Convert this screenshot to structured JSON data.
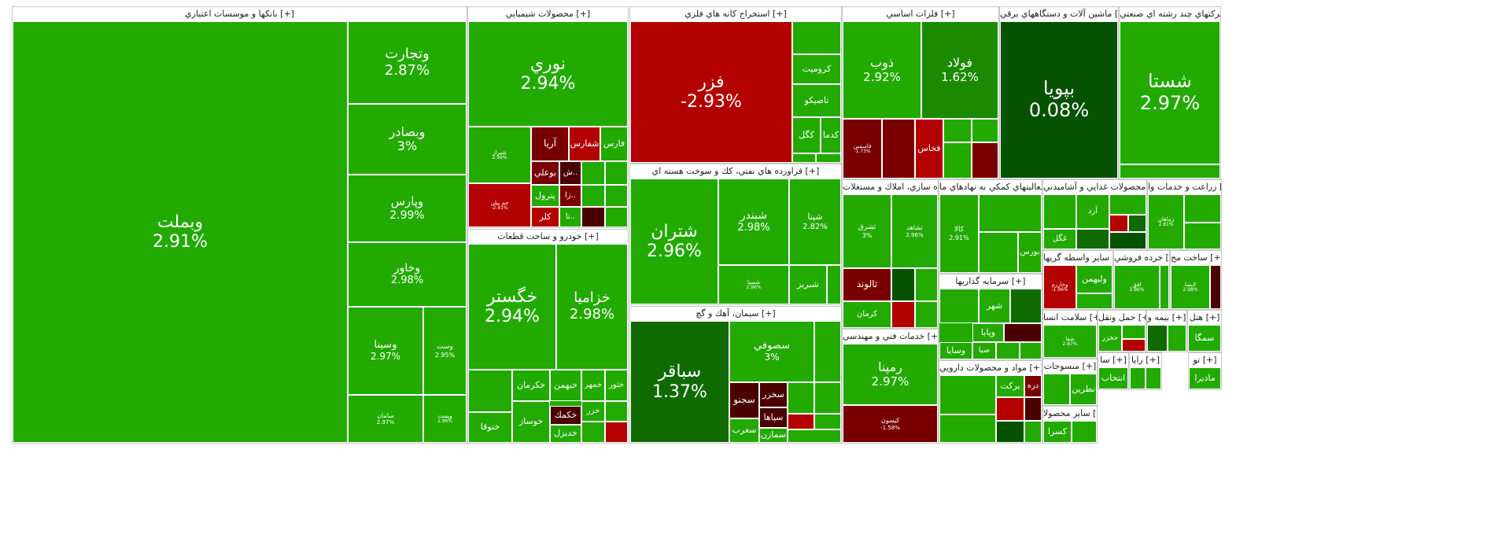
{
  "colors": {
    "green": "#22aa00",
    "mid_green": "#1c8a00",
    "dark_green": "#0f6a00",
    "deepest_green": "#055200",
    "red": "#b30000",
    "dark_red": "#7a0000",
    "deepest_red": "#4a0000",
    "border": "#ffffff",
    "header_bg": "#ffffff"
  },
  "chart_data": {
    "type": "treemap",
    "metric": "daily change (%)",
    "sectors": [
      {
        "title": "بانكها و موسسات اعتباري [+]",
        "symbols": [
          {
            "name": "وبملت",
            "change": "2.91%"
          },
          {
            "name": "وتجارت",
            "change": "2.87%"
          },
          {
            "name": "وبصادر",
            "change": "3%"
          },
          {
            "name": "وپارس",
            "change": "2.99%"
          },
          {
            "name": "وخاور",
            "change": "2.98%"
          },
          {
            "name": "وسينا",
            "change": "2.97%"
          },
          {
            "name": "وست",
            "change": "2.95%"
          },
          {
            "name": "سامان",
            "change": "2.97%"
          },
          {
            "name": "وپست",
            "change": "2.96%"
          }
        ]
      },
      {
        "title": "محصولات شيميايي [+]",
        "symbols": [
          {
            "name": "نوري",
            "change": "2.94%"
          },
          {
            "name": "شيراز",
            "change": "2.99%"
          },
          {
            "name": "آريا",
            "change": ""
          },
          {
            "name": "شفارس",
            "change": ""
          },
          {
            "name": "فارس",
            "change": ""
          },
          {
            "name": "بوعلي",
            "change": ""
          },
          {
            "name": "ش..",
            "change": ""
          },
          {
            "name": "جم پيلن",
            "change": "-2.91%"
          },
          {
            "name": "پترول",
            "change": ""
          },
          {
            "name": "زا..",
            "change": ""
          },
          {
            "name": "كلر",
            "change": ""
          },
          {
            "name": "تا..",
            "change": ""
          }
        ]
      },
      {
        "title": "خودرو و ساخت قطعات [+]",
        "symbols": [
          {
            "name": "خگستر",
            "change": "2.94%"
          },
          {
            "name": "خزاميا",
            "change": "2.98%"
          },
          {
            "name": "خكرمان",
            "change": ""
          },
          {
            "name": "خبهمن",
            "change": ""
          },
          {
            "name": "خمهر",
            "change": ""
          },
          {
            "name": "ختور",
            "change": ""
          },
          {
            "name": "خزر",
            "change": ""
          },
          {
            "name": "ختوقا",
            "change": ""
          },
          {
            "name": "خوساز",
            "change": ""
          },
          {
            "name": "خكمك",
            "change": ""
          },
          {
            "name": "خديزل",
            "change": ""
          }
        ]
      },
      {
        "title": "استخراج كانه هاي فلزي [+]",
        "symbols": [
          {
            "name": "فزر",
            "change": "-2.93%"
          },
          {
            "name": "كروميت",
            "change": ""
          },
          {
            "name": "تاصيكو",
            "change": ""
          },
          {
            "name": "كگل",
            "change": ""
          },
          {
            "name": "كدما",
            "change": ""
          }
        ]
      },
      {
        "title": "فراورده هاي نفتي، كك و سوخت هسته اي [+]",
        "symbols": [
          {
            "name": "شتران",
            "change": "2.96%"
          },
          {
            "name": "شبندر",
            "change": "2.98%"
          },
          {
            "name": "شپنا",
            "change": "2.82%"
          },
          {
            "name": "شبريز",
            "change": ""
          },
          {
            "name": "شسپا",
            "change": "2.96%"
          }
        ]
      },
      {
        "title": "سيمان، آهك و گچ [+]",
        "symbols": [
          {
            "name": "سباقر",
            "change": "1.37%"
          },
          {
            "name": "سصوفي",
            "change": "3%"
          },
          {
            "name": "سجنو",
            "change": ""
          },
          {
            "name": "سخزر",
            "change": ""
          },
          {
            "name": "سپاها",
            "change": ""
          },
          {
            "name": "سغرب",
            "change": ""
          },
          {
            "name": "سمازن",
            "change": ""
          }
        ]
      },
      {
        "title": "فلزات اساسي [+]",
        "symbols": [
          {
            "name": "ذوب",
            "change": "2.92%"
          },
          {
            "name": "فولاد",
            "change": "1.62%"
          },
          {
            "name": "فخاس",
            "change": ""
          },
          {
            "name": "فاسمين",
            "change": "-1.73%"
          }
        ]
      },
      {
        "title": "ماشين آلات و دستگاههاي برقي [+]",
        "symbols": [
          {
            "name": "بپويا",
            "change": "0.08%"
          }
        ]
      },
      {
        "title": "شركتهاي چند رشته اي صنعتي [+]",
        "symbols": [
          {
            "name": "شستا",
            "change": "2.97%"
          }
        ]
      },
      {
        "title": "انبوه سازي، املاك و مستغلات [+]",
        "symbols": [
          {
            "name": "ثشرق",
            "change": "3%"
          },
          {
            "name": "ثشاهد",
            "change": "2.96%"
          },
          {
            "name": "ثالوند",
            "change": ""
          },
          {
            "name": "كرمان",
            "change": ""
          }
        ]
      },
      {
        "title": "فعاليتهاي كمكي به نهادهاي ما [+]",
        "symbols": [
          {
            "name": "كالا",
            "change": "2.91%"
          },
          {
            "name": "بورس",
            "change": ""
          }
        ]
      },
      {
        "title": "محصولات غذايي و آشاميدني [+]",
        "symbols": [
          {
            "name": "آرد",
            "change": ""
          },
          {
            "name": "غگل",
            "change": ""
          }
        ]
      },
      {
        "title": "زراعت و خدمات وا [+]",
        "symbols": [
          {
            "name": "زماهان",
            "change": "2.81%"
          }
        ]
      },
      {
        "title": "سرمايه گذاريها [+]",
        "symbols": [
          {
            "name": "شهر",
            "change": ""
          },
          {
            "name": "وپايا",
            "change": ""
          },
          {
            "name": "وسايا",
            "change": ""
          },
          {
            "name": "صبا",
            "change": ""
          }
        ]
      },
      {
        "title": "خدمات فني و مهندسي [+]",
        "symbols": [
          {
            "name": "رمپنا",
            "change": "2.97%"
          },
          {
            "name": "كيسون",
            "change": "-1.58%"
          }
        ]
      },
      {
        "title": "مواد و محصولات دارويي [+]",
        "symbols": [
          {
            "name": "بركت",
            "change": ""
          },
          {
            "name": "دره",
            "change": ""
          }
        ]
      },
      {
        "title": "ساير واسطه گريها [+]",
        "symbols": [
          {
            "name": "ولبهمن",
            "change": ""
          },
          {
            "name": "وخارزم",
            "change": "-1.96%"
          }
        ]
      },
      {
        "title": "خرده فروشي [+]",
        "symbols": [
          {
            "name": "افق",
            "change": "2.86%"
          }
        ]
      },
      {
        "title": "ساخت مح [+]",
        "symbols": [
          {
            "name": "لابسا",
            "change": "2.98%"
          }
        ]
      },
      {
        "title": "سلامت انسا [+]",
        "symbols": [
          {
            "name": "شفا",
            "change": "2.87%"
          }
        ]
      },
      {
        "title": "منسوجات [+]",
        "symbols": [
          {
            "name": "نطرين",
            "change": ""
          }
        ]
      },
      {
        "title": "ساير محصولا [+]",
        "symbols": [
          {
            "name": "كسرا",
            "change": ""
          }
        ]
      },
      {
        "title": "حمل ونقل [+]",
        "symbols": [
          {
            "name": "حخزر",
            "change": ""
          }
        ]
      },
      {
        "title": "بيمه و [+]",
        "symbols": []
      },
      {
        "title": "هتل [+]",
        "symbols": [
          {
            "name": "سمگا",
            "change": ""
          }
        ]
      },
      {
        "title": "رايا [+]",
        "symbols": []
      },
      {
        "title": "سا [+]",
        "symbols": [
          {
            "name": "انتخاب",
            "change": ""
          }
        ]
      },
      {
        "title": "تو [+]",
        "symbols": [
          {
            "name": "ماديرا",
            "change": ""
          }
        ]
      }
    ]
  }
}
